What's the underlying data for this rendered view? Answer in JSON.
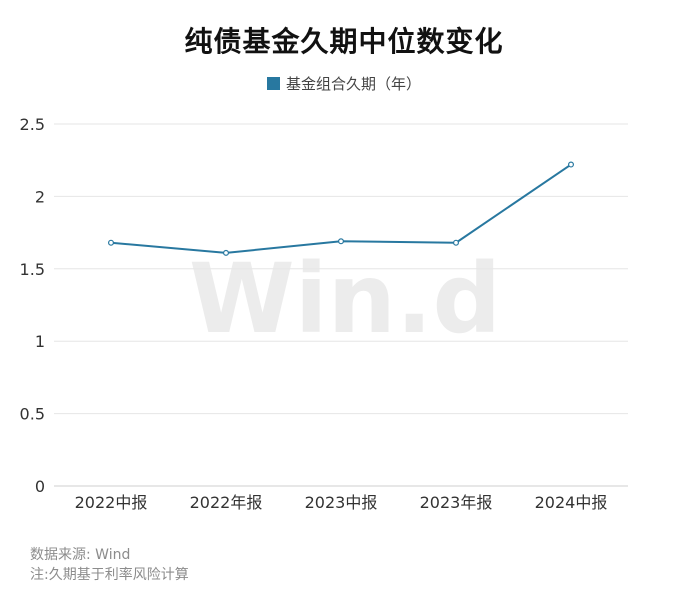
{
  "chart_data": {
    "type": "line",
    "title": "纯债基金久期中位数变化",
    "categories": [
      "2022中报",
      "2022年报",
      "2023中报",
      "2023年报",
      "2024中报"
    ],
    "series": [
      {
        "name": "基金组合久期（年）",
        "values": [
          1.68,
          1.61,
          1.69,
          1.68,
          2.22
        ],
        "color": "#2878a0"
      }
    ],
    "yticks": [
      "2.5",
      "2",
      "1.5",
      "1",
      "0.5",
      "0"
    ],
    "ylim": [
      0,
      2.5
    ],
    "grid": true,
    "legend_position": "top-center",
    "xlabel": "",
    "ylabel": ""
  },
  "watermark": "Win.d",
  "footnotes": {
    "source": "数据来源: Wind",
    "note": "注:久期基于利率风险计算"
  }
}
